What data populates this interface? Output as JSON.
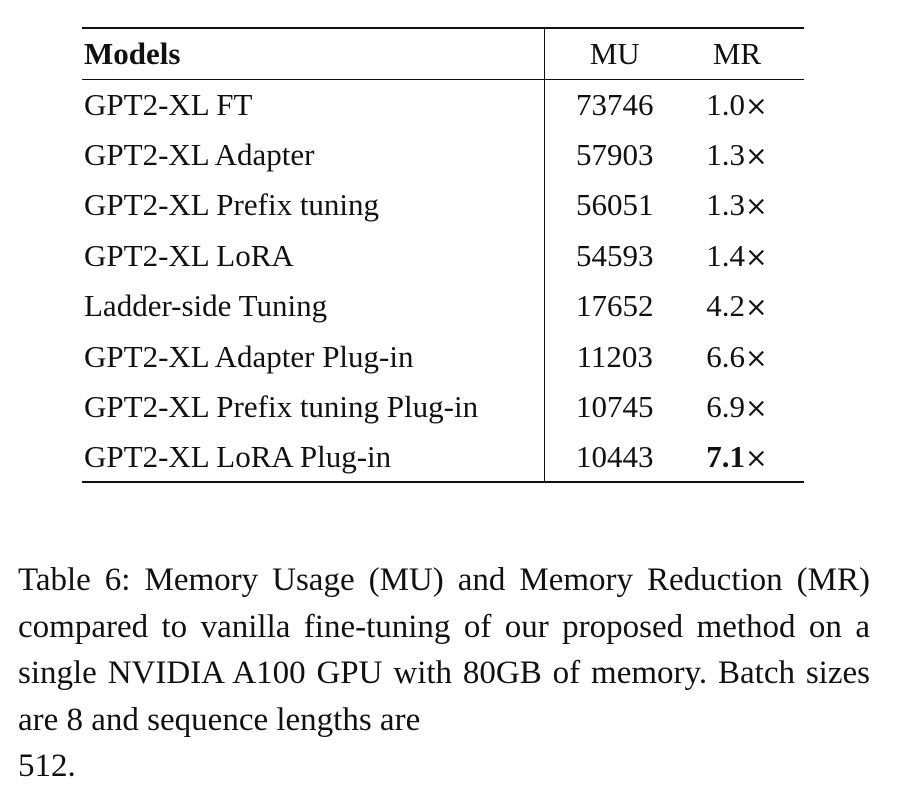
{
  "table": {
    "headers": {
      "model": "Models",
      "mu": "MU",
      "mr": "MR"
    },
    "rows": [
      {
        "model": "GPT2-XL FT",
        "mu": "73746",
        "mr": "1.0",
        "mr_suffix": "×",
        "mr_bold": false
      },
      {
        "model": "GPT2-XL Adapter",
        "mu": "57903",
        "mr": "1.3",
        "mr_suffix": "×",
        "mr_bold": false
      },
      {
        "model": "GPT2-XL Prefix tuning",
        "mu": "56051",
        "mr": "1.3",
        "mr_suffix": "×",
        "mr_bold": false
      },
      {
        "model": "GPT2-XL LoRA",
        "mu": "54593",
        "mr": "1.4",
        "mr_suffix": "×",
        "mr_bold": false
      },
      {
        "model": "Ladder-side Tuning",
        "mu": "17652",
        "mr": "4.2",
        "mr_suffix": "×",
        "mr_bold": false
      },
      {
        "model": "GPT2-XL Adapter Plug-in",
        "mu": "11203",
        "mr": "6.6",
        "mr_suffix": "×",
        "mr_bold": false
      },
      {
        "model": "GPT2-XL Prefix tuning Plug-in",
        "mu": "10745",
        "mr": "6.9",
        "mr_suffix": "×",
        "mr_bold": false
      },
      {
        "model": "GPT2-XL LoRA Plug-in",
        "mu": "10443",
        "mr": "7.1",
        "mr_suffix": "×",
        "mr_bold": true
      }
    ]
  },
  "caption": {
    "text": "Table 6: Memory Usage (MU) and Memory Reduction (MR) compared to vanilla fine-tuning of our proposed method on a single NVIDIA A100 GPU with 80GB of memory.  Batch sizes are 8 and sequence lengths are",
    "last_line": "512."
  }
}
